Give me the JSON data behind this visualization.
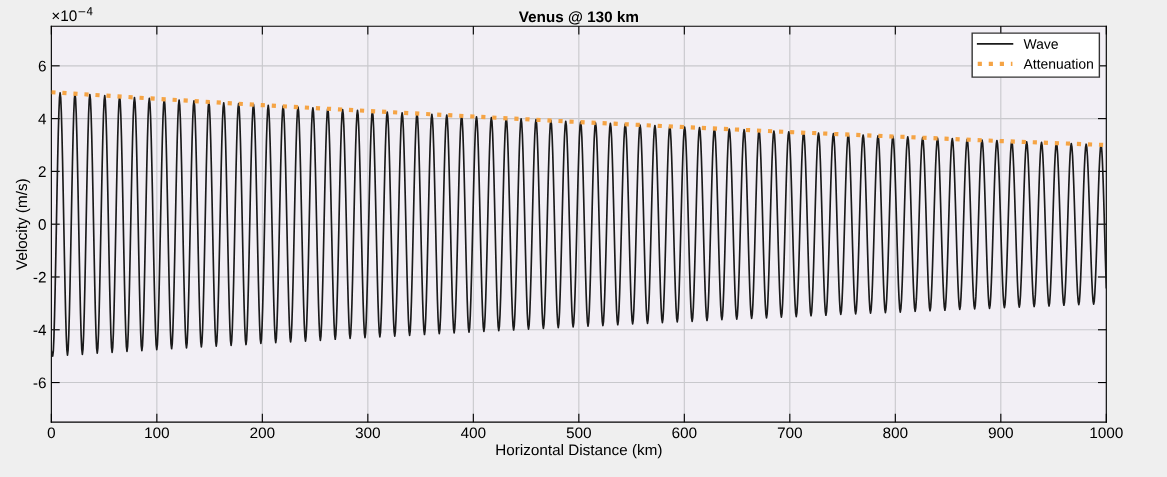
{
  "chart_data": {
    "type": "line",
    "title": "Venus @ 130 km",
    "xlabel": "Horizontal Distance (km)",
    "ylabel": "Velocity (m/s)",
    "annotations": [
      "×10$^{−4}$"
    ],
    "xlim": [
      0,
      1000
    ],
    "xticks": [
      0,
      100,
      200,
      300,
      400,
      500,
      600,
      700,
      800,
      900,
      1000
    ],
    "ylim": [
      -7.5,
      7.5
    ],
    "yticks": [
      -6,
      -4,
      -2,
      0,
      2,
      4,
      6
    ],
    "grid": true,
    "legend": "top right",
    "series": [
      {
        "name": "Wave",
        "color": "#1a1a1a",
        "line_style": "solid",
        "x": [
          0,
          1.3,
          8.3,
          15.3,
          22.4,
          29.4,
          36.5,
          43.5,
          50.6,
          57.6,
          64.7,
          71.7,
          78.8,
          85.8,
          92.9,
          99.9,
          107.0,
          114.0,
          121.1,
          128.1,
          135.2,
          142.2,
          149.3,
          156.3,
          163.4,
          170.4,
          177.5,
          184.5,
          191.6,
          198.6,
          205.6,
          212.7,
          219.7,
          226.8,
          233.8,
          240.9,
          247.9,
          255.0,
          262.0,
          269.1,
          276.1,
          283.2,
          290.2,
          297.3,
          304.3,
          311.4,
          318.4,
          325.5,
          332.5,
          339.6,
          346.6,
          353.7,
          360.7,
          367.7,
          374.8,
          381.8,
          388.9,
          395.9,
          403.0,
          410.0,
          417.1,
          424.1,
          431.2,
          438.2,
          445.3,
          452.3,
          459.4,
          466.4,
          473.5,
          480.5,
          487.6,
          494.6,
          501.7,
          508.7,
          515.8,
          522.8,
          529.9,
          536.9,
          544.0,
          551.0,
          558.0,
          565.1,
          572.1,
          579.2,
          586.2,
          593.3,
          600.3,
          607.4,
          614.4,
          621.5,
          628.5,
          635.6,
          642.6,
          649.7,
          656.7,
          663.8,
          670.8,
          677.9,
          684.9,
          692.0,
          699.0,
          706.1,
          713.1,
          720.1,
          727.2,
          734.2,
          741.3,
          748.3,
          755.4,
          762.4,
          769.5,
          776.5,
          783.6,
          790.6,
          797.7,
          804.7,
          811.8,
          818.8,
          825.9,
          832.9,
          840.0,
          847.0,
          854.0,
          861.1,
          868.1,
          875.2,
          882.2,
          889.3,
          896.3,
          903.4,
          910.4,
          917.5,
          924.5,
          931.6,
          938.6,
          945.7,
          952.7,
          959.8,
          966.8,
          973.9,
          980.9,
          988.0,
          995.0,
          1000
        ],
        "values": [
          -4.8,
          -5.0,
          4.98,
          -4.96,
          4.94,
          -4.93,
          4.91,
          -4.89,
          4.87,
          -4.86,
          4.84,
          -4.82,
          4.8,
          -4.79,
          4.77,
          -4.75,
          4.73,
          -4.72,
          4.7,
          -4.69,
          4.67,
          -4.65,
          4.63,
          -4.62,
          4.6,
          -4.59,
          4.57,
          -4.56,
          4.54,
          -4.52,
          4.5,
          -4.49,
          4.47,
          -4.46,
          4.44,
          -4.43,
          4.41,
          -4.4,
          4.38,
          -4.36,
          4.34,
          -4.33,
          4.31,
          -4.3,
          4.28,
          -4.27,
          4.25,
          -4.24,
          4.22,
          -4.21,
          4.19,
          -4.18,
          4.16,
          -4.15,
          4.13,
          -4.12,
          4.1,
          -4.09,
          4.07,
          -4.06,
          4.04,
          -4.03,
          4.01,
          -4.01,
          3.99,
          -3.98,
          3.96,
          -3.95,
          3.93,
          -3.92,
          3.9,
          -3.89,
          3.87,
          -3.86,
          3.84,
          -3.84,
          3.82,
          -3.81,
          3.79,
          -3.78,
          3.76,
          -3.76,
          3.74,
          -3.73,
          3.71,
          -3.7,
          3.68,
          -3.68,
          3.66,
          -3.65,
          3.63,
          -3.62,
          3.6,
          -3.6,
          3.58,
          -3.57,
          3.55,
          -3.55,
          3.53,
          -3.52,
          3.5,
          -3.5,
          3.48,
          -3.47,
          3.45,
          -3.45,
          3.43,
          -3.42,
          3.4,
          -3.4,
          3.38,
          -3.37,
          3.35,
          -3.35,
          3.33,
          -3.33,
          3.31,
          -3.3,
          3.28,
          -3.28,
          3.26,
          -3.26,
          3.24,
          -3.23,
          3.21,
          -3.21,
          3.19,
          -3.19,
          3.17,
          -3.16,
          3.14,
          -3.14,
          3.12,
          -3.12,
          3.1,
          -3.1,
          3.08,
          -3.07,
          3.05,
          -3.05,
          3.03,
          -3.03,
          3.01,
          -2.4
        ]
      },
      {
        "name": "Attenuation",
        "color": "#f5a445",
        "line_style": "dotted",
        "x": [
          0,
          100,
          200,
          300,
          400,
          500,
          600,
          700,
          800,
          900,
          1000
        ],
        "values": [
          5.0,
          4.75,
          4.51,
          4.29,
          4.08,
          3.87,
          3.68,
          3.49,
          3.32,
          3.15,
          3.0
        ]
      }
    ]
  }
}
